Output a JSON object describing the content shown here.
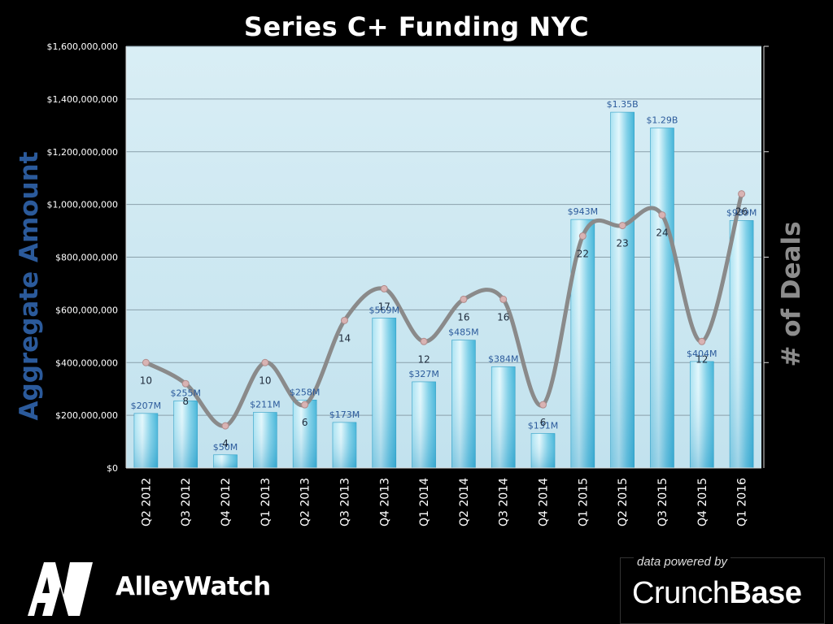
{
  "chart_data": {
    "type": "bar",
    "title": "Series C+ Funding NYC",
    "ylabel": "Aggregate Amount",
    "y2label": "# of Deals",
    "ylim": [
      0,
      1600000000
    ],
    "y_ticks": [
      "$0",
      "$200,000,000",
      "$400,000,000",
      "$600,000,000",
      "$800,000,000",
      "$1,000,000,000",
      "$1,200,000,000",
      "$1,400,000,000",
      "$1,600,000,000"
    ],
    "categories": [
      "Q2 2012",
      "Q3 2012",
      "Q4 2012",
      "Q1 2013",
      "Q2 2013",
      "Q3 2013",
      "Q4 2013",
      "Q1 2014",
      "Q2 2014",
      "Q3 2014",
      "Q4 2014",
      "Q1 2015",
      "Q2 2015",
      "Q3 2015",
      "Q4 2015",
      "Q1 2016"
    ],
    "series": [
      {
        "values": [
          207000000,
          255000000,
          50000000,
          211000000,
          258000000,
          173000000,
          569000000,
          327000000,
          485000000,
          384000000,
          131000000,
          943000000,
          1350000000,
          1290000000,
          404000000,
          939000000
        ],
        "labels": [
          "$207M",
          "$255M",
          "$50M",
          "$211M",
          "$258M",
          "$173M",
          "$569M",
          "$327M",
          "$485M",
          "$384M",
          "$131M",
          "$943M",
          "$1.35B",
          "$1.29B",
          "$404M",
          "$939M"
        ],
        "color": "#5bc6e3"
      },
      {
        "values": [
          10,
          8,
          4,
          10,
          6,
          14,
          17,
          12,
          16,
          16,
          6,
          22,
          23,
          24,
          12,
          26
        ],
        "axis": "secondary",
        "color": "#8a8a8a"
      }
    ],
    "y2lim": [
      0,
      40
    ],
    "grid": true
  },
  "colors": {
    "plot_bg_top": "#d6ecf4",
    "plot_bg_bottom": "#c4e3ef",
    "ylabel": "#2b5a9b",
    "y2label": "#8c8c8c",
    "value_label": "#2b5a9b",
    "line": "#8a8a8a"
  },
  "branding": {
    "logo_text": "AW",
    "name": "AlleyWatch",
    "powered_label": "data powered by",
    "powered_name_part1": "Crunch",
    "powered_name_part2": "Base"
  }
}
